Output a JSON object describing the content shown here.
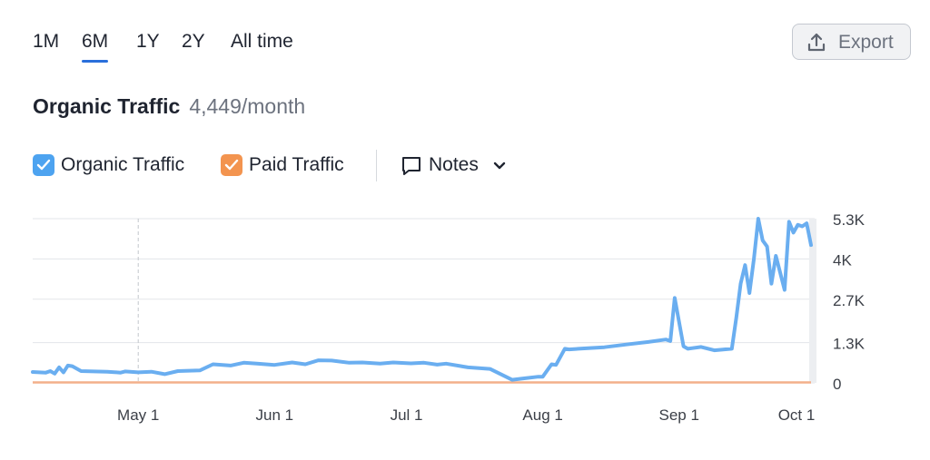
{
  "periods": [
    {
      "label": "1M",
      "active": false
    },
    {
      "label": "6M",
      "active": true
    },
    {
      "label": "1Y",
      "active": false
    },
    {
      "label": "2Y",
      "active": false
    },
    {
      "label": "All time",
      "active": false
    }
  ],
  "export": {
    "label": "Export",
    "icon": "upload-icon"
  },
  "summary": {
    "title": "Organic Traffic",
    "value": "4,449/month"
  },
  "legend": [
    {
      "label": "Organic Traffic",
      "color": "#4da3f0",
      "checked": true
    },
    {
      "label": "Paid Traffic",
      "color": "#f3944f",
      "checked": true
    }
  ],
  "notes": {
    "label": "Notes",
    "icon": "comment-icon"
  },
  "colors": {
    "organic_line": "#6aaef0",
    "paid_line": "#f3b08a",
    "grid": "#e3e5e9",
    "axis_text": "#3b3f47"
  },
  "chart_data": {
    "type": "line",
    "x_tick_labels": [
      "May 1",
      "Jun 1",
      "Jul 1",
      "Aug 1",
      "Sep 1",
      "Oct 1"
    ],
    "y_tick_labels": [
      "5.3K",
      "4K",
      "2.7K",
      "1.3K",
      "0"
    ],
    "y_tick_values": [
      5300,
      4000,
      2700,
      1300,
      0
    ],
    "ylim": [
      0,
      5300
    ],
    "xlim": [
      "2024-04-07",
      "2024-10-01"
    ],
    "grid": true,
    "series": [
      {
        "name": "Organic Traffic",
        "x": [
          "2024-04-07",
          "2024-04-10",
          "2024-04-11",
          "2024-04-12",
          "2024-04-13",
          "2024-04-14",
          "2024-04-15",
          "2024-04-16",
          "2024-04-18",
          "2024-04-21",
          "2024-04-24",
          "2024-04-27",
          "2024-04-28",
          "2024-05-01",
          "2024-05-04",
          "2024-05-07",
          "2024-05-10",
          "2024-05-15",
          "2024-05-18",
          "2024-05-22",
          "2024-05-25",
          "2024-05-28",
          "2024-06-01",
          "2024-06-05",
          "2024-06-08",
          "2024-06-11",
          "2024-06-14",
          "2024-06-18",
          "2024-06-21",
          "2024-06-25",
          "2024-06-28",
          "2024-07-02",
          "2024-07-05",
          "2024-07-08",
          "2024-07-10",
          "2024-07-15",
          "2024-07-20",
          "2024-07-25",
          "2024-07-28",
          "2024-07-31",
          "2024-08-01",
          "2024-08-03",
          "2024-08-04",
          "2024-08-06",
          "2024-08-07",
          "2024-08-10",
          "2024-08-15",
          "2024-08-20",
          "2024-08-25",
          "2024-08-29",
          "2024-08-30",
          "2024-08-31",
          "2024-09-02",
          "2024-09-03",
          "2024-09-06",
          "2024-09-09",
          "2024-09-13",
          "2024-09-14",
          "2024-09-15",
          "2024-09-16",
          "2024-09-17",
          "2024-09-18",
          "2024-09-19",
          "2024-09-20",
          "2024-09-21",
          "2024-09-22",
          "2024-09-23",
          "2024-09-25",
          "2024-09-26",
          "2024-09-27",
          "2024-09-28",
          "2024-09-29",
          "2024-09-30",
          "2024-10-01"
        ],
        "y": [
          350,
          330,
          380,
          300,
          500,
          340,
          560,
          540,
          380,
          370,
          360,
          330,
          370,
          340,
          360,
          280,
          380,
          400,
          600,
          560,
          650,
          620,
          580,
          660,
          600,
          730,
          720,
          650,
          660,
          620,
          660,
          630,
          650,
          590,
          620,
          500,
          450,
          100,
          150,
          200,
          200,
          600,
          580,
          1100,
          1080,
          1110,
          1150,
          1240,
          1320,
          1400,
          1350,
          2740,
          1180,
          1100,
          1160,
          1050,
          1100,
          2100,
          3200,
          3800,
          2900,
          4000,
          5300,
          4600,
          4400,
          3200,
          4100,
          3000,
          5200,
          4850,
          5100,
          5050,
          5150,
          4449
        ],
        "color": "#6aaef0"
      },
      {
        "name": "Paid Traffic",
        "x": [
          "2024-04-07",
          "2024-10-01"
        ],
        "y": [
          0,
          0
        ],
        "color": "#f3b08a"
      }
    ]
  }
}
